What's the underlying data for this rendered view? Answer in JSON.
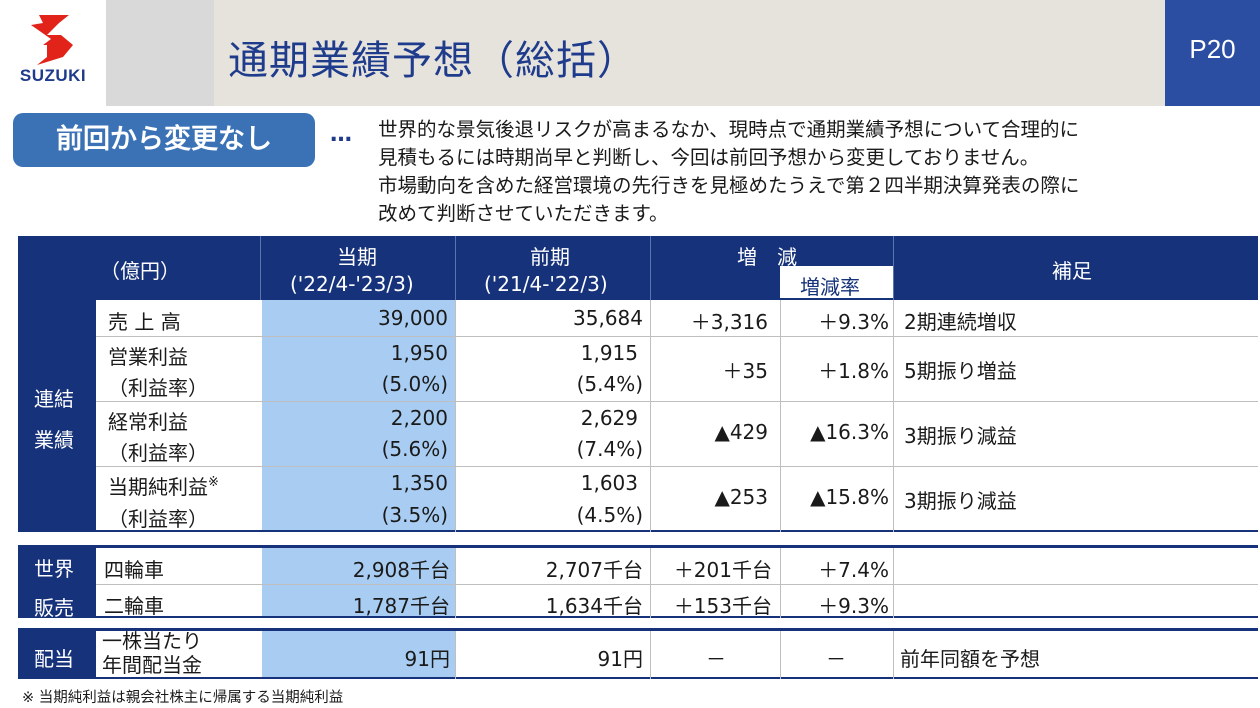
{
  "header": {
    "logo_text": "SUZUKI",
    "title": "通期業績予想（総括）",
    "page_number": "P20",
    "brand_color": "#2b4ea2"
  },
  "badge": {
    "label": "前回から変更なし"
  },
  "ellipsis": "…",
  "note_lines": [
    "世界的な景気後退リスクが高まるなか、現時点で通期業績予想について合理的に",
    "見積もるには時期尚早と判断し、今回は前回予想から変更しておりません。",
    "市場動向を含めた経営環境の先行きを見極めたうえで第２四半期決算発表の際に",
    "改めて判断させていただきます。"
  ],
  "table": {
    "headers": {
      "unit": "（億円）",
      "current_label": "当期",
      "current_period": "('22/4-'23/3)",
      "previous_label": "前期",
      "previous_period": "('21/4-'22/3)",
      "change": "増　減",
      "change_rate": "増減率",
      "remarks": "補足"
    },
    "consolidated": {
      "group_label_1": "連結",
      "group_label_2": "業績",
      "rows": [
        {
          "item": "売 上 高",
          "sub": "",
          "current": "39,000",
          "current_sub": "",
          "previous": "35,684",
          "previous_sub": "",
          "change": "＋3,316",
          "rate": "＋9.3%",
          "remark": "2期連続増収"
        },
        {
          "item": "営業利益",
          "sub": "（利益率）",
          "current": "1,950",
          "current_sub": "(5.0%)",
          "previous": "1,915",
          "previous_sub": "(5.4%)",
          "change": "＋35",
          "rate": "＋1.8%",
          "remark": "5期振り増益"
        },
        {
          "item": "経常利益",
          "sub": "（利益率）",
          "current": "2,200",
          "current_sub": "(5.6%)",
          "previous": "2,629",
          "previous_sub": "(7.4%)",
          "change": "▲429",
          "rate": "▲16.3%",
          "remark": "3期振り減益"
        },
        {
          "item": "当期純利益",
          "mark": "※",
          "sub": "（利益率）",
          "current": "1,350",
          "current_sub": "(3.5%)",
          "previous": "1,603",
          "previous_sub": "(4.5%)",
          "change": "▲253",
          "rate": "▲15.8%",
          "remark": "3期振り減益"
        }
      ]
    },
    "global_sales": {
      "group_label_1": "世界",
      "group_label_2": "販売",
      "rows": [
        {
          "item": "四輪車",
          "current": "2,908千台",
          "previous": "2,707千台",
          "change": "＋201千台",
          "rate": "＋7.4%",
          "remark": ""
        },
        {
          "item": "二輪車",
          "current": "1,787千台",
          "previous": "1,634千台",
          "change": "＋153千台",
          "rate": "＋9.3%",
          "remark": ""
        }
      ]
    },
    "dividend": {
      "group_label": "配当",
      "item_line1": "一株当たり",
      "item_line2": "年間配当金",
      "current": "91円",
      "previous": "91円",
      "change": "－",
      "rate": "－",
      "remark": "前年同額を予想"
    }
  },
  "footnote": "※ 当期純利益は親会社株主に帰属する当期純利益"
}
